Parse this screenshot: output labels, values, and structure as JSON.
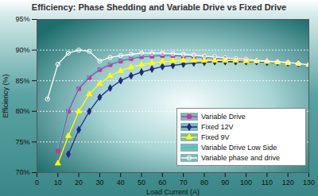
{
  "chart_data": {
    "type": "line",
    "title": "Efficiency: Phase Shedding and Variable Drive vs Fixed Drive",
    "x_label": "Load Current (A)",
    "y_label": "Efficiency (%)",
    "x": [
      5,
      10,
      15,
      20,
      25,
      30,
      35,
      40,
      45,
      50,
      55,
      60,
      65,
      70,
      75,
      80,
      85,
      90,
      95,
      100,
      105,
      110,
      115,
      120,
      125,
      130
    ],
    "series": [
      {
        "name": "Variable Drive",
        "color": "#cc3399",
        "marker": "square",
        "values": [
          null,
          73.5,
          80,
          83.7,
          85.5,
          86.8,
          87.6,
          88.2,
          88.6,
          88.9,
          89.0,
          89.1,
          89.1,
          89.0,
          88.9,
          88.8,
          88.7,
          88.6,
          88.5,
          88.4,
          88.3,
          88.2,
          88.1,
          88.0,
          87.8,
          87.6
        ]
      },
      {
        "name": "Fixed 12V",
        "color": "#1f2a80",
        "marker": "diamond",
        "values": [
          null,
          null,
          73,
          77,
          80,
          82.3,
          83.8,
          85,
          85.8,
          86.4,
          86.9,
          87.3,
          87.5,
          87.7,
          87.9,
          88.0,
          88.1,
          88.1,
          88.1,
          88.1,
          88.1,
          88.0,
          88.0,
          87.9,
          87.8,
          87.6
        ]
      },
      {
        "name": "Fixed 9V",
        "color": "#ffff00",
        "marker": "triangle",
        "values": [
          null,
          71.5,
          76,
          80,
          82.8,
          84.5,
          85.8,
          86.6,
          87.2,
          87.6,
          87.9,
          88.1,
          88.2,
          88.3,
          88.3,
          88.3,
          88.3,
          88.3,
          88.3,
          88.2,
          88.2,
          88.1,
          88.0,
          87.9,
          87.8,
          87.6
        ]
      },
      {
        "name": "Variable Drive Low Side",
        "color": "#33cccc",
        "marker": "none",
        "values": [
          null,
          74,
          80.5,
          84,
          85.8,
          87,
          87.8,
          88.3,
          88.7,
          89.0,
          89.1,
          89.2,
          89.2,
          89.1,
          89.0,
          88.9,
          88.8,
          88.7,
          88.6,
          88.5,
          88.4,
          88.2,
          88.1,
          88.0,
          87.8,
          87.6
        ]
      },
      {
        "name": "Variable phase and drive",
        "color": "#ffffff",
        "marker": "circle",
        "values": [
          82,
          87.7,
          89.5,
          90,
          89.8,
          88.2,
          88.8,
          89.1,
          89.3,
          89.5,
          89.5,
          89.5,
          89.4,
          89.3,
          89.2,
          89.0,
          88.9,
          88.7,
          88.6,
          88.5,
          88.3,
          88.2,
          88.1,
          88.0,
          87.8,
          87.6
        ]
      }
    ],
    "xlim": [
      0,
      130
    ],
    "ylim": [
      70,
      95
    ],
    "xticks": [
      0,
      10,
      20,
      30,
      40,
      50,
      60,
      70,
      80,
      90,
      100,
      110,
      120,
      130
    ],
    "yticks": [
      {
        "value": 70,
        "label": "70%"
      },
      {
        "value": 75,
        "label": "75%"
      },
      {
        "value": 80,
        "label": "80%"
      },
      {
        "value": 85,
        "label": "85%"
      },
      {
        "value": 90,
        "label": "90%"
      },
      {
        "value": 95,
        "label": "95%"
      }
    ],
    "grid": true,
    "legend": "lower right"
  }
}
